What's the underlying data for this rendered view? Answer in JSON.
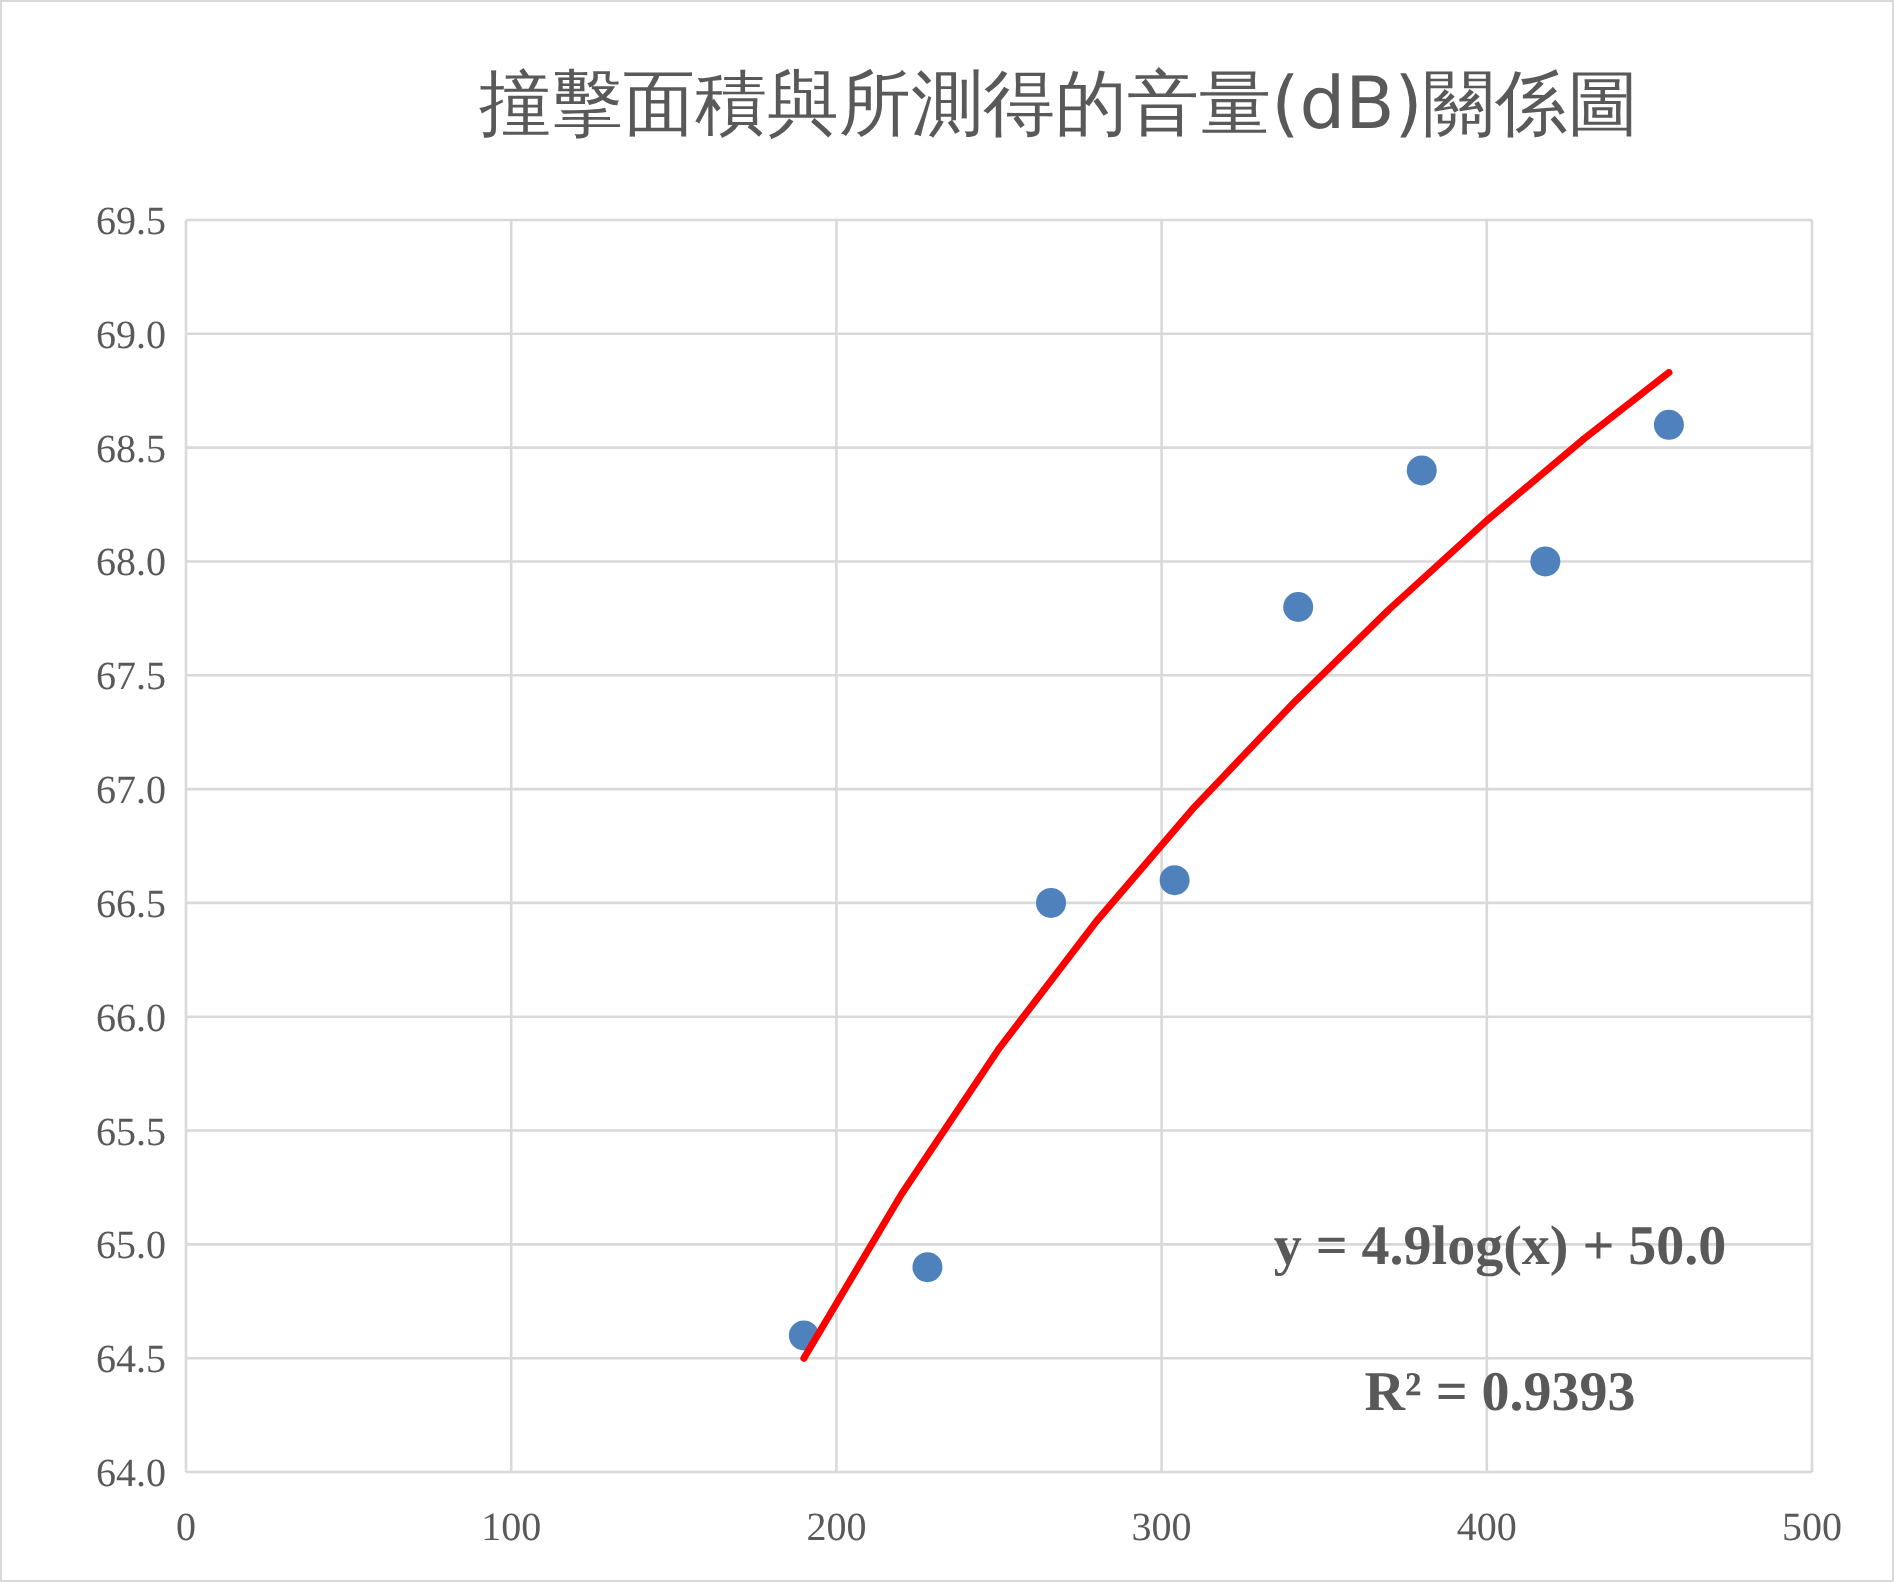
{
  "chart_data": {
    "type": "scatter",
    "title": "撞擊面積與所測得的音量(dB)關係圖",
    "xlim": [
      0,
      500
    ],
    "xticks": [
      0,
      100,
      200,
      300,
      400,
      500
    ],
    "ylim": [
      64,
      69.5
    ],
    "yticks": [
      {
        "value": 64,
        "label": "64.0"
      },
      {
        "value": 64.5,
        "label": "64.5"
      },
      {
        "value": 65,
        "label": "65.0"
      },
      {
        "value": 65.5,
        "label": "65.5"
      },
      {
        "value": 66,
        "label": "66.0"
      },
      {
        "value": 66.5,
        "label": "66.5"
      },
      {
        "value": 67,
        "label": "67.0"
      },
      {
        "value": 67.5,
        "label": "67.5"
      },
      {
        "value": 68,
        "label": "68.0"
      },
      {
        "value": 68.5,
        "label": "68.5"
      },
      {
        "value": 69,
        "label": "69.0"
      },
      {
        "value": 69.5,
        "label": "69.5"
      }
    ],
    "grid": true,
    "series": [
      {
        "marker": "circle",
        "color": "#4f81bd",
        "x": [
          190,
          228,
          266,
          304,
          342,
          380,
          418,
          456
        ],
        "values": [
          64.6,
          64.9,
          66.5,
          66.6,
          67.8,
          68.4,
          68.0,
          68.6
        ]
      },
      {
        "type": "line",
        "marker": "none",
        "color": "#ff0000",
        "x": [
          190,
          220,
          250,
          280,
          310,
          340,
          370,
          400,
          430,
          456
        ],
        "values": [
          64.5,
          65.22,
          65.86,
          66.42,
          66.92,
          67.37,
          67.79,
          68.18,
          68.54,
          68.83
        ]
      }
    ],
    "annotations": [
      "y = 4.9log(x) + 50.0",
      "R² = 0.9393"
    ]
  }
}
